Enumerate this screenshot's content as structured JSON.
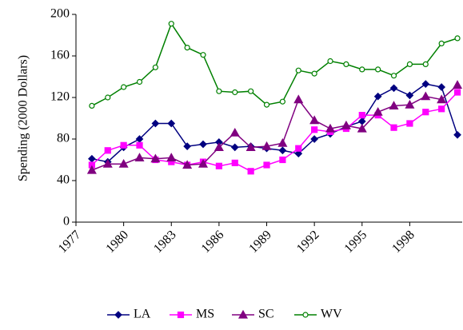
{
  "chart_data": {
    "type": "line",
    "y_label": "Spending (2000 Dollars)",
    "x": [
      1978,
      1979,
      1980,
      1981,
      1982,
      1983,
      1984,
      1985,
      1986,
      1987,
      1988,
      1989,
      1990,
      1991,
      1992,
      1993,
      1994,
      1995,
      1996,
      1997,
      1998,
      1999,
      2000,
      2001
    ],
    "xlim": [
      1977,
      2001.3
    ],
    "xticks": [
      1977,
      1980,
      1983,
      1986,
      1989,
      1992,
      1995,
      1998
    ],
    "ylim": [
      0,
      200
    ],
    "yticks": [
      0,
      40,
      80,
      120,
      160,
      200
    ],
    "legend": "bottom",
    "series": [
      {
        "name": "LA",
        "color": "#000080",
        "marker": "diamond",
        "values": [
          61,
          58,
          72,
          80,
          95,
          95,
          73,
          75,
          77,
          72,
          73,
          71,
          69,
          66,
          80,
          85,
          92,
          97,
          121,
          129,
          122,
          133,
          130,
          84
        ]
      },
      {
        "name": "MS",
        "color": "#ff00ff",
        "marker": "square",
        "values": [
          55,
          69,
          74,
          74,
          60,
          58,
          55,
          58,
          54,
          57,
          49,
          55,
          60,
          71,
          89,
          87,
          90,
          103,
          103,
          91,
          95,
          106,
          109,
          125
        ]
      },
      {
        "name": "SC",
        "color": "#800080",
        "marker": "triangle",
        "values": [
          50,
          56,
          56,
          62,
          61,
          62,
          55,
          56,
          72,
          86,
          72,
          73,
          76,
          118,
          98,
          90,
          93,
          90,
          106,
          112,
          113,
          121,
          118,
          132
        ]
      },
      {
        "name": "WV",
        "color": "#008000",
        "marker": "circle",
        "values": [
          112,
          120,
          130,
          135,
          149,
          191,
          168,
          161,
          126,
          125,
          126,
          113,
          116,
          146,
          143,
          155,
          152,
          147,
          147,
          141,
          152,
          152,
          172,
          177
        ]
      }
    ]
  }
}
